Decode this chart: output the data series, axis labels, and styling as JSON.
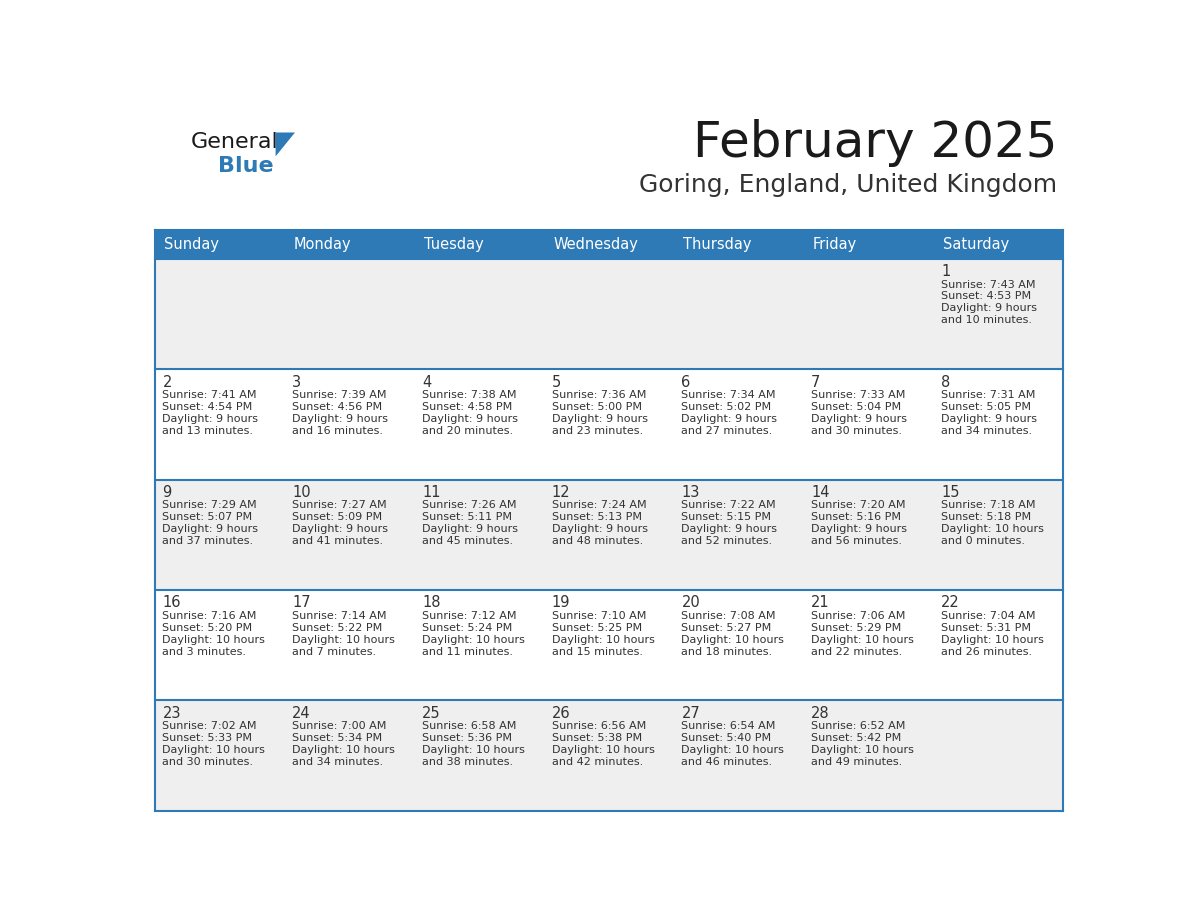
{
  "title": "February 2025",
  "subtitle": "Goring, England, United Kingdom",
  "header_bg": "#2E7AB6",
  "header_text": "#FFFFFF",
  "cell_bg_odd": "#EFEFEF",
  "cell_bg_even": "#FFFFFF",
  "day_headers": [
    "Sunday",
    "Monday",
    "Tuesday",
    "Wednesday",
    "Thursday",
    "Friday",
    "Saturday"
  ],
  "days": [
    {
      "day": 1,
      "col": 6,
      "row": 0,
      "sunrise": "7:43 AM",
      "sunset": "4:53 PM",
      "daylight1": "9 hours",
      "daylight2": "and 10 minutes."
    },
    {
      "day": 2,
      "col": 0,
      "row": 1,
      "sunrise": "7:41 AM",
      "sunset": "4:54 PM",
      "daylight1": "9 hours",
      "daylight2": "and 13 minutes."
    },
    {
      "day": 3,
      "col": 1,
      "row": 1,
      "sunrise": "7:39 AM",
      "sunset": "4:56 PM",
      "daylight1": "9 hours",
      "daylight2": "and 16 minutes."
    },
    {
      "day": 4,
      "col": 2,
      "row": 1,
      "sunrise": "7:38 AM",
      "sunset": "4:58 PM",
      "daylight1": "9 hours",
      "daylight2": "and 20 minutes."
    },
    {
      "day": 5,
      "col": 3,
      "row": 1,
      "sunrise": "7:36 AM",
      "sunset": "5:00 PM",
      "daylight1": "9 hours",
      "daylight2": "and 23 minutes."
    },
    {
      "day": 6,
      "col": 4,
      "row": 1,
      "sunrise": "7:34 AM",
      "sunset": "5:02 PM",
      "daylight1": "9 hours",
      "daylight2": "and 27 minutes."
    },
    {
      "day": 7,
      "col": 5,
      "row": 1,
      "sunrise": "7:33 AM",
      "sunset": "5:04 PM",
      "daylight1": "9 hours",
      "daylight2": "and 30 minutes."
    },
    {
      "day": 8,
      "col": 6,
      "row": 1,
      "sunrise": "7:31 AM",
      "sunset": "5:05 PM",
      "daylight1": "9 hours",
      "daylight2": "and 34 minutes."
    },
    {
      "day": 9,
      "col": 0,
      "row": 2,
      "sunrise": "7:29 AM",
      "sunset": "5:07 PM",
      "daylight1": "9 hours",
      "daylight2": "and 37 minutes."
    },
    {
      "day": 10,
      "col": 1,
      "row": 2,
      "sunrise": "7:27 AM",
      "sunset": "5:09 PM",
      "daylight1": "9 hours",
      "daylight2": "and 41 minutes."
    },
    {
      "day": 11,
      "col": 2,
      "row": 2,
      "sunrise": "7:26 AM",
      "sunset": "5:11 PM",
      "daylight1": "9 hours",
      "daylight2": "and 45 minutes."
    },
    {
      "day": 12,
      "col": 3,
      "row": 2,
      "sunrise": "7:24 AM",
      "sunset": "5:13 PM",
      "daylight1": "9 hours",
      "daylight2": "and 48 minutes."
    },
    {
      "day": 13,
      "col": 4,
      "row": 2,
      "sunrise": "7:22 AM",
      "sunset": "5:15 PM",
      "daylight1": "9 hours",
      "daylight2": "and 52 minutes."
    },
    {
      "day": 14,
      "col": 5,
      "row": 2,
      "sunrise": "7:20 AM",
      "sunset": "5:16 PM",
      "daylight1": "9 hours",
      "daylight2": "and 56 minutes."
    },
    {
      "day": 15,
      "col": 6,
      "row": 2,
      "sunrise": "7:18 AM",
      "sunset": "5:18 PM",
      "daylight1": "10 hours",
      "daylight2": "and 0 minutes."
    },
    {
      "day": 16,
      "col": 0,
      "row": 3,
      "sunrise": "7:16 AM",
      "sunset": "5:20 PM",
      "daylight1": "10 hours",
      "daylight2": "and 3 minutes."
    },
    {
      "day": 17,
      "col": 1,
      "row": 3,
      "sunrise": "7:14 AM",
      "sunset": "5:22 PM",
      "daylight1": "10 hours",
      "daylight2": "and 7 minutes."
    },
    {
      "day": 18,
      "col": 2,
      "row": 3,
      "sunrise": "7:12 AM",
      "sunset": "5:24 PM",
      "daylight1": "10 hours",
      "daylight2": "and 11 minutes."
    },
    {
      "day": 19,
      "col": 3,
      "row": 3,
      "sunrise": "7:10 AM",
      "sunset": "5:25 PM",
      "daylight1": "10 hours",
      "daylight2": "and 15 minutes."
    },
    {
      "day": 20,
      "col": 4,
      "row": 3,
      "sunrise": "7:08 AM",
      "sunset": "5:27 PM",
      "daylight1": "10 hours",
      "daylight2": "and 18 minutes."
    },
    {
      "day": 21,
      "col": 5,
      "row": 3,
      "sunrise": "7:06 AM",
      "sunset": "5:29 PM",
      "daylight1": "10 hours",
      "daylight2": "and 22 minutes."
    },
    {
      "day": 22,
      "col": 6,
      "row": 3,
      "sunrise": "7:04 AM",
      "sunset": "5:31 PM",
      "daylight1": "10 hours",
      "daylight2": "and 26 minutes."
    },
    {
      "day": 23,
      "col": 0,
      "row": 4,
      "sunrise": "7:02 AM",
      "sunset": "5:33 PM",
      "daylight1": "10 hours",
      "daylight2": "and 30 minutes."
    },
    {
      "day": 24,
      "col": 1,
      "row": 4,
      "sunrise": "7:00 AM",
      "sunset": "5:34 PM",
      "daylight1": "10 hours",
      "daylight2": "and 34 minutes."
    },
    {
      "day": 25,
      "col": 2,
      "row": 4,
      "sunrise": "6:58 AM",
      "sunset": "5:36 PM",
      "daylight1": "10 hours",
      "daylight2": "and 38 minutes."
    },
    {
      "day": 26,
      "col": 3,
      "row": 4,
      "sunrise": "6:56 AM",
      "sunset": "5:38 PM",
      "daylight1": "10 hours",
      "daylight2": "and 42 minutes."
    },
    {
      "day": 27,
      "col": 4,
      "row": 4,
      "sunrise": "6:54 AM",
      "sunset": "5:40 PM",
      "daylight1": "10 hours",
      "daylight2": "and 46 minutes."
    },
    {
      "day": 28,
      "col": 5,
      "row": 4,
      "sunrise": "6:52 AM",
      "sunset": "5:42 PM",
      "daylight1": "10 hours",
      "daylight2": "and 49 minutes."
    }
  ],
  "num_rows": 5,
  "logo_color1": "#1a1a1a",
  "logo_color2": "#2E7AB6",
  "logo_triangle_color": "#2E7AB6",
  "grid_line_color": "#2E7AB6",
  "day_num_color": "#333333",
  "info_text_color": "#333333"
}
